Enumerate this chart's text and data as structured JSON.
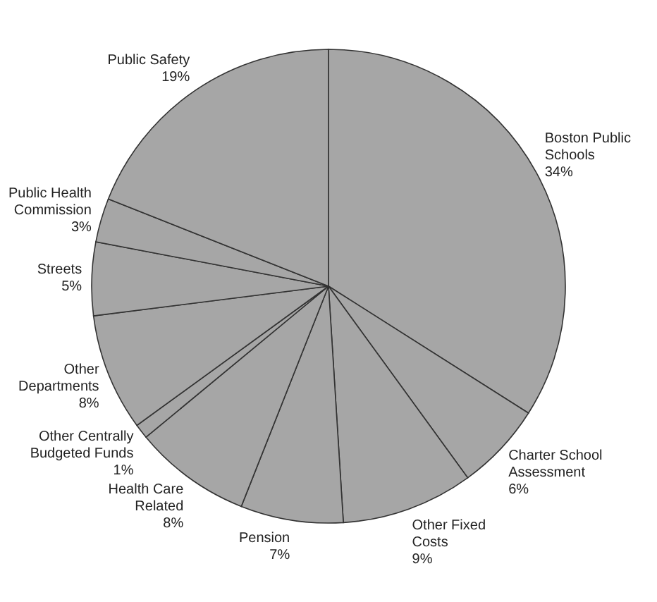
{
  "chart_data": {
    "type": "pie",
    "categories": [
      "Boston Public Schools",
      "Charter School Assessment",
      "Other Fixed Costs",
      "Pension",
      "Health Care Related",
      "Other Centrally Budgeted Funds",
      "Other Departments",
      "Streets",
      "Public Health Commission",
      "Public Safety"
    ],
    "values": [
      34,
      6,
      9,
      7,
      8,
      1,
      8,
      5,
      3,
      19
    ],
    "value_labels": [
      "34%",
      "6%",
      "9%",
      "7%",
      "8%",
      "1%",
      "8%",
      "5%",
      "3%",
      "19%"
    ],
    "colors": [
      "#a6a6a6",
      "#a6a6a6",
      "#a6a6a6",
      "#a6a6a6",
      "#a6a6a6",
      "#a6a6a6",
      "#a6a6a6",
      "#a6a6a6",
      "#a6a6a6",
      "#a6a6a6"
    ]
  }
}
